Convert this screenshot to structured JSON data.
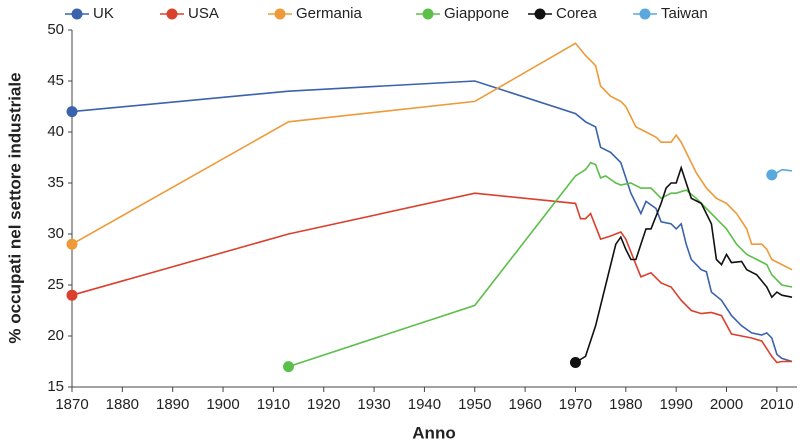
{
  "chart_data": {
    "type": "line",
    "x_label": "Anno",
    "y_label": "% occupati nel settore industriale",
    "xlim": [
      1870,
      2014
    ],
    "ylim": [
      15,
      50
    ],
    "xticks": [
      1870,
      1880,
      1890,
      1900,
      1910,
      1920,
      1930,
      1940,
      1950,
      1960,
      1970,
      1980,
      1990,
      2000,
      2010
    ],
    "yticks": [
      15,
      20,
      25,
      30,
      35,
      40,
      45,
      50
    ],
    "grid": false,
    "legend": "top",
    "series": [
      {
        "name": "UK",
        "color": "#3a62ad",
        "x": [
          1870,
          1913,
          1950,
          1970,
          1972,
          1974,
          1975,
          1977,
          1979,
          1981,
          1983,
          1984,
          1986,
          1987,
          1989,
          1990,
          1991,
          1992,
          1993,
          1995,
          1996,
          1997,
          1999,
          2001,
          2003,
          2005,
          2007,
          2008,
          2009,
          2010,
          2011,
          2013
        ],
        "values": [
          42,
          44,
          45,
          41.8,
          41,
          40.5,
          38.5,
          38,
          37,
          34,
          32,
          33.2,
          32.5,
          31.2,
          31,
          30.5,
          31,
          29,
          27.5,
          26.5,
          26.3,
          24.3,
          23.5,
          22,
          21,
          20.3,
          20.1,
          20.3,
          19.8,
          18.2,
          17.8,
          17.5
        ]
      },
      {
        "name": "USA",
        "color": "#d9412e",
        "x": [
          1870,
          1913,
          1950,
          1970,
          1971,
          1972,
          1973,
          1975,
          1977,
          1979,
          1980,
          1982,
          1983,
          1985,
          1987,
          1989,
          1991,
          1993,
          1995,
          1997,
          1999,
          2001,
          2003,
          2005,
          2007,
          2009,
          2010,
          2011,
          2013
        ],
        "values": [
          24,
          30,
          34,
          33,
          31.5,
          31.5,
          32,
          29.5,
          29.8,
          30.2,
          29.5,
          27,
          25.8,
          26.2,
          25.2,
          24.8,
          23.5,
          22.5,
          22.2,
          22.3,
          22,
          20.2,
          20,
          19.8,
          19.5,
          18,
          17.4,
          17.5,
          17.5
        ]
      },
      {
        "name": "Germania",
        "color": "#ee9a3a",
        "x": [
          1870,
          1913,
          1950,
          1970,
          1972,
          1973,
          1974,
          1975,
          1977,
          1979,
          1980,
          1982,
          1984,
          1986,
          1987,
          1989,
          1990,
          1991,
          1992,
          1994,
          1996,
          1998,
          2000,
          2002,
          2004,
          2005,
          2007,
          2008,
          2009,
          2011,
          2013
        ],
        "values": [
          29,
          41,
          43,
          48.7,
          47.5,
          47,
          46.5,
          44.5,
          43.5,
          43,
          42.5,
          40.5,
          40,
          39.5,
          39,
          39,
          39.7,
          39,
          38,
          36,
          34.5,
          33.5,
          33,
          32,
          30.5,
          29,
          29,
          28.5,
          27.5,
          27,
          26.5
        ]
      },
      {
        "name": "Giappone",
        "color": "#5cbf4a",
        "x": [
          1913,
          1950,
          1970,
          1972,
          1973,
          1974,
          1975,
          1976,
          1978,
          1979,
          1981,
          1983,
          1985,
          1987,
          1989,
          1990,
          1992,
          1994,
          1996,
          1998,
          2000,
          2002,
          2004,
          2006,
          2008,
          2009,
          2011,
          2013
        ],
        "values": [
          17,
          23,
          35.7,
          36.3,
          37,
          36.8,
          35.5,
          35.7,
          35,
          34.8,
          35,
          34.5,
          34.5,
          33.5,
          34,
          34,
          34.3,
          33.5,
          32.5,
          31.5,
          30.5,
          29,
          28,
          27.5,
          27,
          26,
          25,
          24.8
        ]
      },
      {
        "name": "Corea",
        "color": "#111111",
        "x": [
          1970,
          1972,
          1974,
          1976,
          1978,
          1979,
          1980,
          1981,
          1982,
          1983,
          1984,
          1985,
          1987,
          1988,
          1989,
          1990,
          1991,
          1992,
          1993,
          1995,
          1996,
          1997,
          1998,
          1999,
          2000,
          2001,
          2003,
          2004,
          2006,
          2008,
          2009,
          2010,
          2011,
          2013
        ],
        "values": [
          17.4,
          18,
          21,
          25,
          29,
          29.7,
          28.5,
          27.5,
          27.5,
          29,
          30.5,
          30.5,
          33,
          34.5,
          35,
          35,
          36.5,
          35,
          33.5,
          33,
          32,
          31,
          27.5,
          27,
          28,
          27.2,
          27.3,
          26.5,
          26,
          24.8,
          23.8,
          24.3,
          24,
          23.8
        ]
      },
      {
        "name": "Taiwan",
        "color": "#5aa9dc",
        "x": [
          2009,
          2010,
          2011,
          2013
        ],
        "values": [
          35.8,
          36,
          36.3,
          36.2
        ]
      }
    ]
  }
}
